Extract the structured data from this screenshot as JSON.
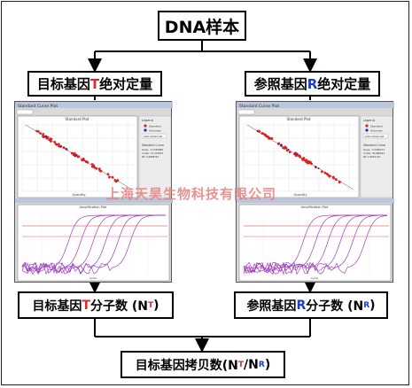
{
  "top_box": {
    "label": "DNA样本"
  },
  "left_quant": {
    "prefix": "目标基因",
    "gene": "T",
    "suffix": "绝对定量",
    "gene_color": "#e00000"
  },
  "right_quant": {
    "prefix": "参照基因",
    "gene": "R",
    "suffix": "绝对定量",
    "gene_color": "#1a3cc8"
  },
  "left_count": {
    "prefix": "目标基因",
    "gene": "T",
    "suffix": "分子数 (N",
    "sub": "T",
    "close": ")"
  },
  "right_count": {
    "prefix": "参照基因",
    "gene": "R",
    "suffix": "分子数 (N",
    "sub": "R",
    "close": ")"
  },
  "bottom_box": {
    "prefix": "目标基因拷贝数(N",
    "sub1": "T",
    "slash": "/N",
    "sub2": "R",
    "close": ")"
  },
  "watermark": "上海天昊生物科技有限公司",
  "screenshot_left": {
    "std_title": "Standard Curve Plot",
    "std_chart_title": "Standard Plot",
    "std_xlabel": "Quantity",
    "amp_title": "Amplification Plot",
    "amp_xlabel": "Cycle",
    "legend_title": "Legend",
    "legend_items": [
      "Standard",
      "Unknown",
      "Auto Advanced"
    ],
    "curve_title": "Standard Curve",
    "curve_lines": [
      "Slope: -3.3338988",
      "Y-Inter: 37.270503",
      "R2: 0.9988763"
    ]
  },
  "screenshot_right": {
    "std_title": "Standard Curve Plot",
    "std_chart_title": "Standard Plot",
    "std_xlabel": "Quantity",
    "amp_title": "Amplification Plot",
    "amp_xlabel": "Cycle",
    "legend_title": "Legend",
    "legend_items": [
      "Standard",
      "Unknown",
      "Auto Advanced"
    ],
    "curve_title": "Standard Curve",
    "curve_lines": [
      "Slope: -3.2996573",
      "Y-Inter: 36.880924",
      "R2: 0.9991134"
    ]
  },
  "colors": {
    "std_points": "#e02020",
    "unknown_points": "#2030c0",
    "amp_curves": "#a040c0",
    "threshold": "#d03030"
  }
}
